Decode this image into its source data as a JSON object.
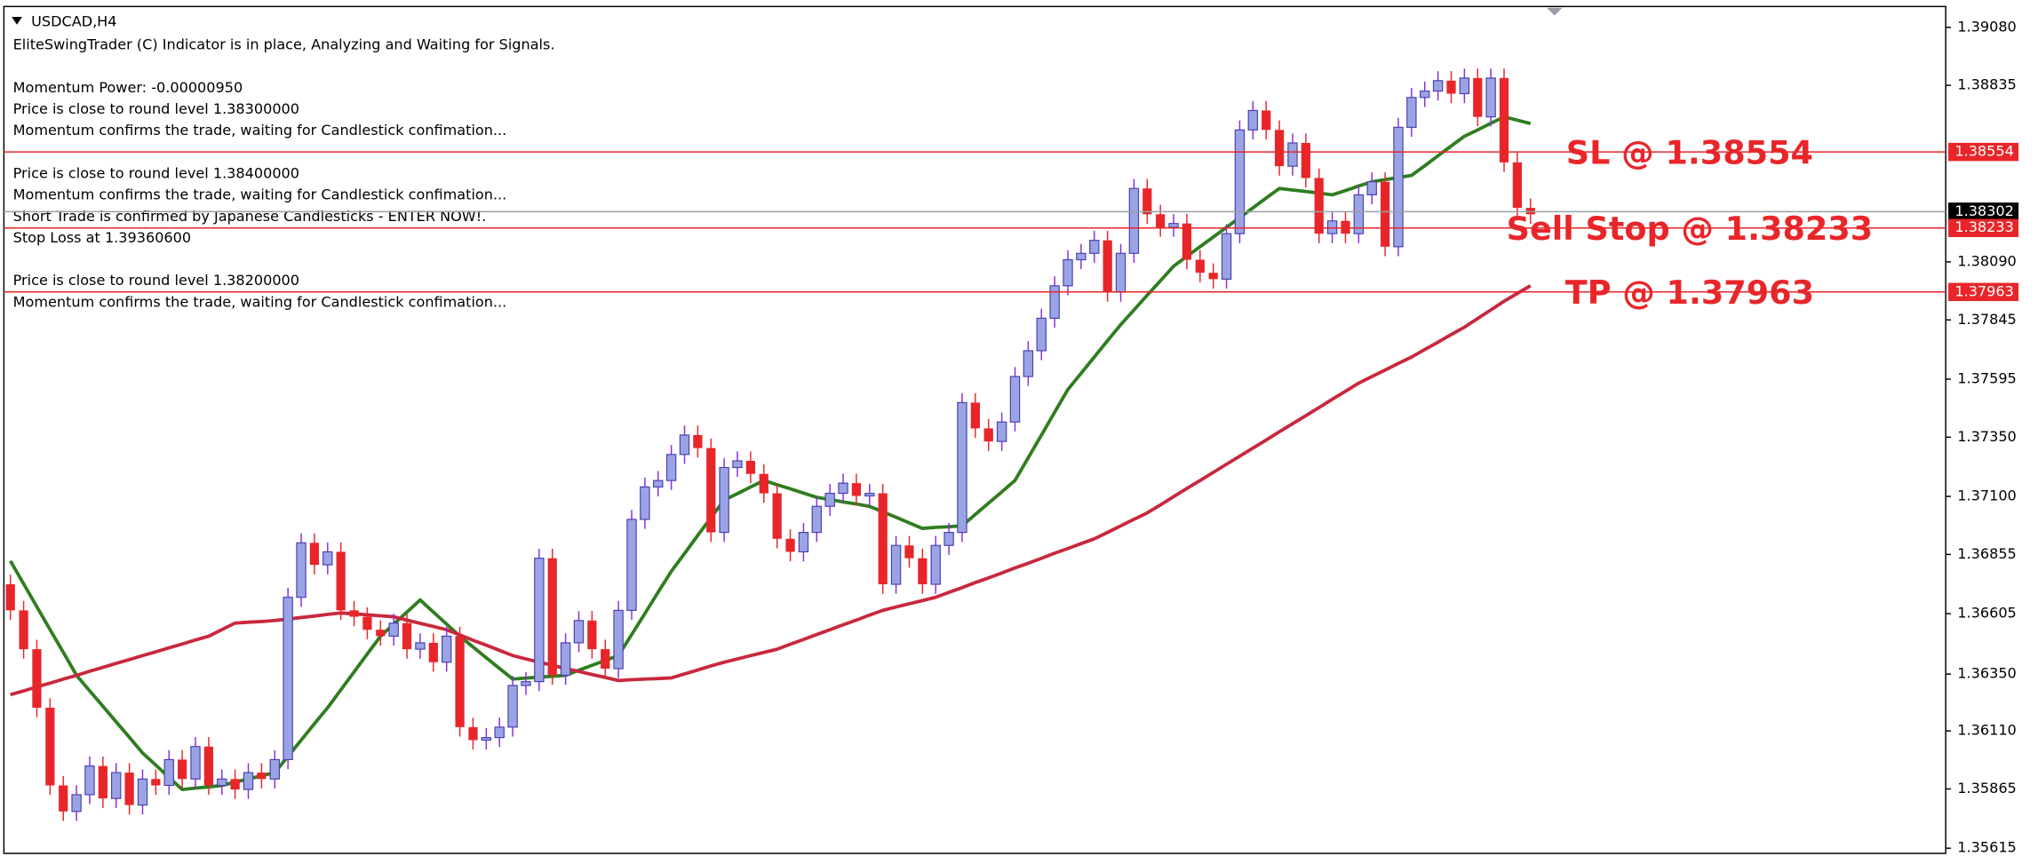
{
  "chart_data": {
    "type": "candlestick",
    "title": "USDCAD,H4",
    "messages": [
      [
        "EliteSwingTrader (C) Indicator is in place, Analyzing and Waiting for Signals."
      ],
      [
        "Momentum Power: -0.00000950",
        "Price is close to round level 1.38300000",
        "Momentum confirms the trade, waiting for Candlestick confimation..."
      ],
      [
        "Price is close to round level 1.38400000",
        "Momentum confirms the trade, waiting for Candlestick confimation...",
        "Short Trade is confirmed by Japanese Candlesticks - ENTER NOW!.",
        "Stop Loss at 1.39360600"
      ],
      [
        "Price is close to round level 1.38200000",
        "Momentum confirms the trade, waiting for Candlestick confimation..."
      ]
    ],
    "ylim": [
      1.35593,
      1.39168
    ],
    "yticks": [
      {
        "value": 1.3908,
        "label": "1.39080"
      },
      1.38835,
      {
        "value": 1.3809,
        "label": "1.38090"
      },
      1.37845,
      1.37595,
      {
        "value": 1.3735,
        "label": "1.37350"
      },
      {
        "value": 1.371,
        "label": "1.37100"
      },
      1.36855,
      1.36605,
      {
        "value": 1.3635,
        "label": "1.36350"
      },
      {
        "value": 1.3611,
        "label": "1.36110"
      },
      1.35865,
      1.35615
    ],
    "grid": false,
    "up_color": "#9aa4e4",
    "up_wick_color": "#8a2be2",
    "down_color": "#e8262a",
    "open": [
      1.36729,
      1.36619,
      1.36455,
      1.36208,
      1.3588,
      1.3577,
      1.35841,
      1.35962,
      1.35825,
      1.35934,
      1.35797,
      1.35907,
      1.3588,
      1.35989,
      1.35907,
      1.36044,
      1.3588,
      1.35907,
      1.35863,
      1.35934,
      1.35907,
      1.35989,
      1.36674,
      1.36904,
      1.36811,
      1.36866,
      1.36619,
      1.36592,
      1.36537,
      1.3651,
      1.36565,
      1.36455,
      1.36482,
      1.364,
      1.3651,
      1.36126,
      1.36071,
      1.36082,
      1.36126,
      1.36302,
      1.36318,
      1.36839,
      1.36345,
      1.36482,
      1.36576,
      1.36455,
      1.36373,
      1.36619,
      1.37003,
      1.3714,
      1.37167,
      1.37277,
      1.37359,
      1.37304,
      1.36948,
      1.37222,
      1.3725,
      1.37195,
      1.37113,
      1.36921,
      1.36866,
      1.36948,
      1.37058,
      1.37113,
      1.37156,
      1.37102,
      1.37113,
      1.36729,
      1.36893,
      1.36839,
      1.36729,
      1.36893,
      1.36948,
      1.37496,
      1.37387,
      1.37332,
      1.37414,
      1.37606,
      1.37715,
      1.37852,
      1.37989,
      1.38099,
      1.38126,
      1.38181,
      1.37962,
      1.38126,
      1.384,
      1.38291,
      1.38236,
      1.38252,
      1.38099,
      1.38044,
      1.38017,
      1.38209,
      1.38647,
      1.38729,
      1.38647,
      1.38494,
      1.38592,
      1.38444,
      1.38209,
      1.38263,
      1.38209,
      1.38373,
      1.38428,
      1.38154,
      1.38658,
      1.38784,
      1.38811,
      1.38855,
      1.388,
      1.38866,
      1.38702,
      1.38866,
      1.3851,
      1.38318
    ],
    "high": [
      1.36769,
      1.36659,
      1.36495,
      1.36248,
      1.3592,
      1.35881,
      1.36002,
      1.36002,
      1.35974,
      1.35974,
      1.35947,
      1.35947,
      1.36029,
      1.36029,
      1.36084,
      1.36084,
      1.35947,
      1.35947,
      1.35974,
      1.35974,
      1.36029,
      1.36714,
      1.36944,
      1.36944,
      1.36906,
      1.36906,
      1.36659,
      1.36632,
      1.36577,
      1.36605,
      1.36605,
      1.36522,
      1.36522,
      1.3655,
      1.3655,
      1.36166,
      1.36122,
      1.36166,
      1.36342,
      1.36358,
      1.36879,
      1.36879,
      1.36522,
      1.36616,
      1.36616,
      1.36495,
      1.36659,
      1.37043,
      1.3718,
      1.37207,
      1.37317,
      1.37399,
      1.37399,
      1.37344,
      1.37262,
      1.3729,
      1.3729,
      1.37235,
      1.37153,
      1.36961,
      1.36988,
      1.37098,
      1.37153,
      1.37196,
      1.37196,
      1.37153,
      1.37153,
      1.36933,
      1.36933,
      1.36879,
      1.36933,
      1.36988,
      1.37536,
      1.37536,
      1.37427,
      1.37454,
      1.37646,
      1.37755,
      1.37892,
      1.38029,
      1.38139,
      1.38166,
      1.38221,
      1.38221,
      1.38166,
      1.3844,
      1.3844,
      1.38331,
      1.38292,
      1.38292,
      1.38139,
      1.38084,
      1.38249,
      1.38687,
      1.38769,
      1.38769,
      1.38687,
      1.38632,
      1.38632,
      1.38484,
      1.38303,
      1.38303,
      1.38413,
      1.38468,
      1.38468,
      1.38698,
      1.38824,
      1.38851,
      1.38895,
      1.38895,
      1.38906,
      1.38906,
      1.38906,
      1.38906,
      1.3855,
      1.38358
    ],
    "low": [
      1.36579,
      1.36415,
      1.36168,
      1.3584,
      1.3573,
      1.3573,
      1.35801,
      1.35785,
      1.35785,
      1.35757,
      1.35757,
      1.3584,
      1.3584,
      1.35867,
      1.35867,
      1.3584,
      1.3584,
      1.35823,
      1.35823,
      1.35867,
      1.35867,
      1.35949,
      1.36634,
      1.36771,
      1.36771,
      1.36579,
      1.36552,
      1.36497,
      1.3647,
      1.3647,
      1.36415,
      1.36415,
      1.3636,
      1.3636,
      1.36086,
      1.36031,
      1.36031,
      1.36042,
      1.36086,
      1.36262,
      1.36278,
      1.36305,
      1.36305,
      1.36442,
      1.36415,
      1.36333,
      1.36333,
      1.36579,
      1.36963,
      1.371,
      1.37127,
      1.37237,
      1.37264,
      1.36908,
      1.36908,
      1.37182,
      1.37155,
      1.37073,
      1.36881,
      1.36826,
      1.36826,
      1.36908,
      1.37018,
      1.37073,
      1.37062,
      1.37062,
      1.36689,
      1.36689,
      1.36799,
      1.36689,
      1.36689,
      1.36853,
      1.36908,
      1.37347,
      1.37292,
      1.37292,
      1.37374,
      1.37566,
      1.37675,
      1.37812,
      1.37949,
      1.38059,
      1.38086,
      1.37922,
      1.37922,
      1.38086,
      1.38251,
      1.38196,
      1.38196,
      1.38059,
      1.38004,
      1.37977,
      1.37977,
      1.38169,
      1.38607,
      1.38607,
      1.38454,
      1.38454,
      1.38404,
      1.38169,
      1.38169,
      1.38169,
      1.38169,
      1.38333,
      1.38114,
      1.38114,
      1.38618,
      1.38744,
      1.38771,
      1.3876,
      1.3876,
      1.38662,
      1.38662,
      1.3847,
      1.38278,
      1.38251
    ],
    "close": [
      1.36619,
      1.36455,
      1.36208,
      1.3588,
      1.3577,
      1.35841,
      1.35962,
      1.35825,
      1.35934,
      1.35797,
      1.35907,
      1.3588,
      1.35989,
      1.35907,
      1.36044,
      1.3588,
      1.35907,
      1.35863,
      1.35934,
      1.35907,
      1.35989,
      1.36674,
      1.36904,
      1.36811,
      1.36866,
      1.36619,
      1.36592,
      1.36537,
      1.3651,
      1.36565,
      1.36455,
      1.36482,
      1.364,
      1.3651,
      1.36126,
      1.36071,
      1.36082,
      1.36126,
      1.36302,
      1.36318,
      1.36839,
      1.36345,
      1.36482,
      1.36576,
      1.36455,
      1.36373,
      1.36619,
      1.37003,
      1.3714,
      1.37167,
      1.37277,
      1.37359,
      1.37304,
      1.36948,
      1.37222,
      1.3725,
      1.37195,
      1.37113,
      1.36921,
      1.36866,
      1.36948,
      1.37058,
      1.37113,
      1.37156,
      1.37102,
      1.37113,
      1.36729,
      1.36893,
      1.36839,
      1.36729,
      1.36893,
      1.36948,
      1.37496,
      1.37387,
      1.37332,
      1.37414,
      1.37606,
      1.37715,
      1.37852,
      1.37989,
      1.38099,
      1.38126,
      1.38181,
      1.37962,
      1.38126,
      1.384,
      1.38291,
      1.38236,
      1.38252,
      1.38099,
      1.38044,
      1.38017,
      1.38209,
      1.38647,
      1.38729,
      1.38647,
      1.38494,
      1.38592,
      1.38444,
      1.38209,
      1.38263,
      1.38209,
      1.38373,
      1.38428,
      1.38154,
      1.38658,
      1.38784,
      1.38811,
      1.38855,
      1.388,
      1.38866,
      1.38702,
      1.38866,
      1.3851,
      1.38318,
      1.38291
    ],
    "series": [
      {
        "color": "#2f7d1f",
        "values": [
          1.36828,
          1.36731,
          1.36635,
          1.36538,
          1.36442,
          1.36345,
          1.36279,
          1.36214,
          1.36148,
          1.36083,
          1.36017,
          1.35966,
          1.35914,
          1.35863,
          1.35869,
          1.35874,
          1.3588,
          1.35894,
          1.35907,
          1.35921,
          1.35934,
          1.36003,
          1.36071,
          1.3614,
          1.36208,
          1.36284,
          1.36359,
          1.36435,
          1.3651,
          1.36561,
          1.36612,
          1.36663,
          1.36612,
          1.36561,
          1.3651,
          1.36465,
          1.36419,
          1.36374,
          1.36329,
          1.36333,
          1.36337,
          1.36341,
          1.36345,
          1.36366,
          1.36387,
          1.36407,
          1.36428,
          1.36517,
          1.36606,
          1.36695,
          1.36784,
          1.36859,
          1.36935,
          1.3701,
          1.37085,
          1.37112,
          1.3714,
          1.37167,
          1.37149,
          1.37132,
          1.37114,
          1.37096,
          1.37087,
          1.37077,
          1.37068,
          1.37058,
          1.37035,
          1.37012,
          1.36988,
          1.36965,
          1.36969,
          1.36972,
          1.36976,
          1.37024,
          1.37072,
          1.37119,
          1.37167,
          1.37263,
          1.37359,
          1.37455,
          1.37551,
          1.3762,
          1.37688,
          1.37757,
          1.37825,
          1.37887,
          1.37949,
          1.3801,
          1.38072,
          1.38113,
          1.38154,
          1.38195,
          1.38236,
          1.38277,
          1.38318,
          1.38359,
          1.384,
          1.38393,
          1.38387,
          1.3838,
          1.38373,
          1.38391,
          1.3841,
          1.38428,
          1.38437,
          1.38446,
          1.38455,
          1.38496,
          1.38538,
          1.38579,
          1.3862,
          1.38647,
          1.38675,
          1.38702,
          1.38688,
          1.38674
        ]
      },
      {
        "color": "#c8283e",
        "values": [
          1.36263,
          1.36279,
          1.36296,
          1.36312,
          1.36329,
          1.36345,
          1.36362,
          1.36378,
          1.36395,
          1.36411,
          1.36428,
          1.36444,
          1.36461,
          1.36477,
          1.36494,
          1.3651,
          1.36538,
          1.36565,
          1.36569,
          1.36572,
          1.36576,
          1.36582,
          1.36589,
          1.36595,
          1.36602,
          1.36608,
          1.36604,
          1.366,
          1.36596,
          1.36592,
          1.36578,
          1.36564,
          1.36551,
          1.36537,
          1.36515,
          1.36493,
          1.36472,
          1.3645,
          1.36428,
          1.36414,
          1.364,
          1.36387,
          1.36373,
          1.36361,
          1.36348,
          1.36336,
          1.36323,
          1.36326,
          1.36329,
          1.36331,
          1.36334,
          1.36351,
          1.36367,
          1.36384,
          1.364,
          1.36414,
          1.36428,
          1.36441,
          1.36455,
          1.36476,
          1.36496,
          1.36517,
          1.36537,
          1.36558,
          1.36578,
          1.36599,
          1.36619,
          1.36633,
          1.36647,
          1.3666,
          1.36674,
          1.36695,
          1.36715,
          1.36736,
          1.36756,
          1.36777,
          1.36798,
          1.36818,
          1.36839,
          1.3686,
          1.3688,
          1.36901,
          1.36921,
          1.36948,
          1.36976,
          1.37003,
          1.3703,
          1.37064,
          1.37099,
          1.37133,
          1.37167,
          1.37201,
          1.37236,
          1.3727,
          1.37304,
          1.37338,
          1.37373,
          1.37407,
          1.37441,
          1.37475,
          1.3751,
          1.37544,
          1.37578,
          1.37606,
          1.37633,
          1.37661,
          1.37688,
          1.3772,
          1.37751,
          1.37783,
          1.37814,
          1.37851,
          1.37887,
          1.37924,
          1.37957,
          1.37989
        ]
      }
    ],
    "levels": [
      {
        "label": "SL @ 1.38554",
        "value": 1.38554,
        "color": "#e8262a"
      },
      {
        "label": "Sell Stop @ 1.38233",
        "value": 1.38233,
        "color": "#e8262a"
      },
      {
        "label": "TP @ 1.37963",
        "value": 1.37963,
        "color": "#e8262a"
      }
    ],
    "current_price": 1.38302
  }
}
